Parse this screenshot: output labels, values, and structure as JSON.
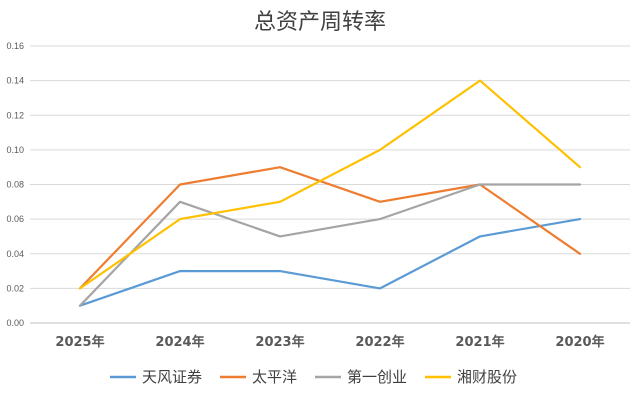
{
  "chart_data": {
    "type": "line",
    "title": "总资产周转率",
    "categories": [
      "2025年",
      "2024年",
      "2023年",
      "2022年",
      "2021年",
      "2020年"
    ],
    "series": [
      {
        "name": "天风证券",
        "color": "#5B9BD5",
        "values": [
          0.01,
          0.03,
          0.03,
          0.02,
          0.05,
          0.06
        ]
      },
      {
        "name": "太平洋",
        "color": "#ED7D31",
        "values": [
          0.02,
          0.08,
          0.09,
          0.07,
          0.08,
          0.04
        ]
      },
      {
        "name": "第一创业",
        "color": "#A5A5A5",
        "values": [
          0.01,
          0.07,
          0.05,
          0.06,
          0.08,
          0.08
        ]
      },
      {
        "name": "湘财股份",
        "color": "#FFC000",
        "values": [
          0.02,
          0.06,
          0.07,
          0.1,
          0.14,
          0.09
        ]
      }
    ],
    "ylim": [
      0,
      0.16
    ],
    "yticks": [
      "0.00",
      "0.02",
      "0.04",
      "0.06",
      "0.08",
      "0.10",
      "0.12",
      "0.14",
      "0.16"
    ],
    "grid": true,
    "legend_position": "bottom"
  }
}
